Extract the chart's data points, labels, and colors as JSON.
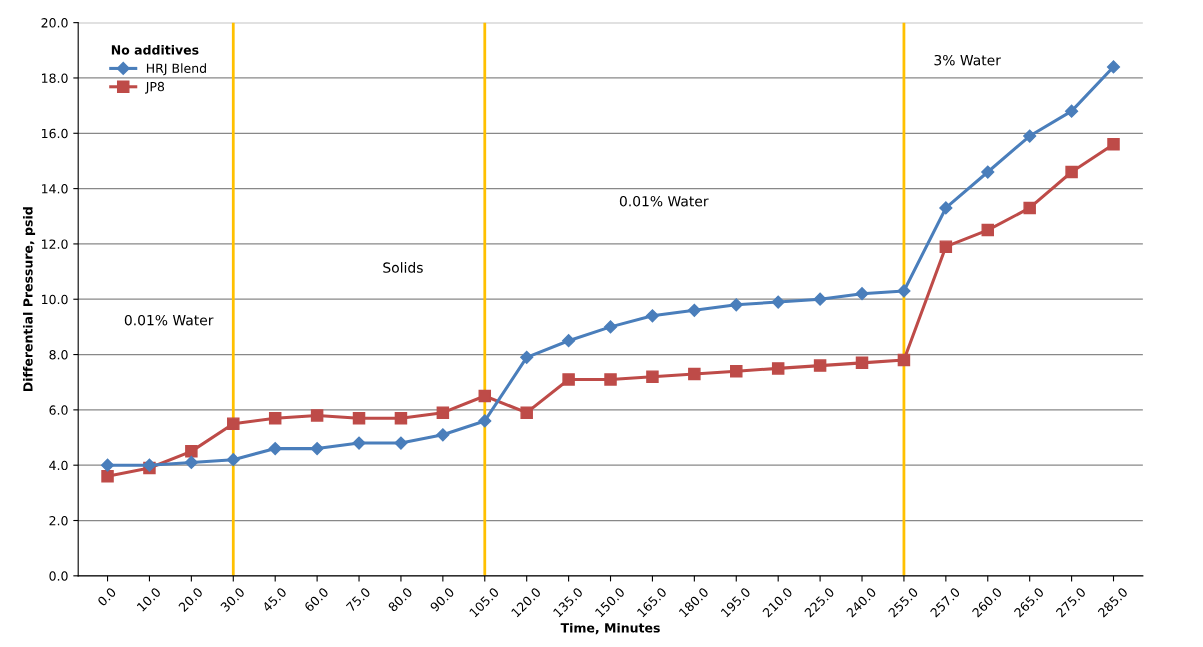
{
  "chart_data": {
    "type": "line",
    "xlabel": "Time, Minutes",
    "ylabel": "Differential Pressure, psid",
    "legend_title": "No additives",
    "legend": "top left",
    "grid": "y",
    "categories": [
      "0.0",
      "10.0",
      "20.0",
      "30.0",
      "45.0",
      "60.0",
      "75.0",
      "80.0",
      "90.0",
      "105.0",
      "120.0",
      "135.0",
      "150.0",
      "165.0",
      "180.0",
      "195.0",
      "210.0",
      "225.0",
      "240.0",
      "255.0",
      "257.0",
      "260.0",
      "265.0",
      "275.0",
      "285.0"
    ],
    "ylim": [
      0,
      20
    ],
    "yticks": [
      {
        "value": 0,
        "label": "0.0"
      },
      {
        "value": 2,
        "label": "2.0"
      },
      {
        "value": 4,
        "label": "4.0"
      },
      {
        "value": 6,
        "label": "6.0"
      },
      {
        "value": 8,
        "label": "8.0"
      },
      {
        "value": 10,
        "label": "10.0"
      },
      {
        "value": 12,
        "label": "12.0"
      },
      {
        "value": 14,
        "label": "14.0"
      },
      {
        "value": 16,
        "label": "16.0"
      },
      {
        "value": 18,
        "label": "18.0"
      },
      {
        "value": 20,
        "label": "20.0"
      }
    ],
    "series": [
      {
        "name": "HRJ Blend",
        "color": "#4a7ebb",
        "marker": "diamond",
        "values": [
          4.0,
          4.0,
          4.1,
          4.2,
          4.6,
          4.6,
          4.8,
          4.8,
          5.1,
          5.6,
          7.9,
          8.5,
          9.0,
          9.4,
          9.6,
          9.8,
          9.9,
          10.0,
          10.2,
          10.3,
          13.3,
          14.6,
          15.9,
          16.8,
          18.4
        ]
      },
      {
        "name": "JP8",
        "color": "#be4b48",
        "marker": "square",
        "values": [
          3.6,
          3.9,
          4.5,
          5.5,
          5.7,
          5.8,
          5.7,
          5.7,
          5.9,
          6.5,
          5.9,
          7.1,
          7.1,
          7.2,
          7.3,
          7.4,
          7.5,
          7.6,
          7.7,
          7.8,
          11.9,
          12.5,
          13.3,
          14.6,
          15.6
        ]
      }
    ],
    "ref_lines": [
      {
        "axis": "x",
        "value": "30.0",
        "color": "#ffc000"
      },
      {
        "axis": "x",
        "value": "105.0",
        "color": "#ffc000"
      },
      {
        "axis": "x",
        "value": "255.0",
        "color": "#ffc000"
      }
    ],
    "annotations": [
      "0.01% Water",
      "Solids",
      "0.01% Water",
      "3% Water"
    ]
  }
}
